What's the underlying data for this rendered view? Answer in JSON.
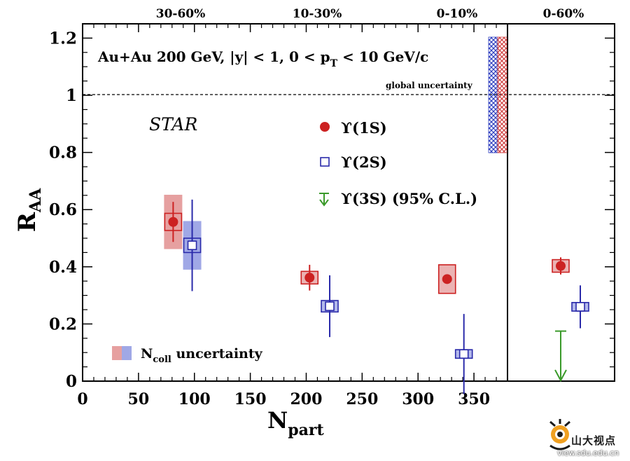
{
  "chart_data": {
    "type": "scatter",
    "title": "Au+Au 200 GeV, |y| < 1, 0 < p_T < 10 GeV/c",
    "experiment": "STAR",
    "xlabel": "N_part",
    "ylabel": "R_AA",
    "xlim": [
      0,
      380
    ],
    "ylim": [
      0,
      1.25
    ],
    "xticks": [
      "0",
      "50",
      "100",
      "150",
      "200",
      "250",
      "300",
      "350"
    ],
    "yticks": [
      "0",
      "0.2",
      "0.4",
      "0.6",
      "0.8",
      "1",
      "1.2"
    ],
    "top_labels": [
      "30-60%",
      "10-30%",
      "0-10%"
    ],
    "side_panel_label": "0-60%",
    "global_uncertainty_label": "global uncertainty",
    "ncoll_uncertainty_label": "N_coll uncertainty",
    "reference_line": 1.0,
    "series": [
      {
        "name": "ϒ(1S)",
        "color": "#cc2222",
        "marker": "filled-circle",
        "points": [
          {
            "x": 81,
            "y": 0.557,
            "stat": 0.07,
            "sys": 0.03,
            "ncoll": 0.095
          },
          {
            "x": 203,
            "y": 0.362,
            "stat": 0.045,
            "sys": 0.022,
            "ncoll": 0.0
          },
          {
            "x": 326,
            "y": 0.357,
            "stat": 0.0,
            "sys": 0.05,
            "ncoll": 0.0
          }
        ]
      },
      {
        "name": "ϒ(2S)",
        "color": "#2a2aaa",
        "marker": "open-square",
        "points": [
          {
            "x": 98,
            "y": 0.475,
            "stat": 0.16,
            "sys": 0.025,
            "ncoll": 0.085
          },
          {
            "x": 221,
            "y": 0.262,
            "stat": 0.108,
            "sys": 0.02,
            "ncoll": 0.0
          },
          {
            "x": 341,
            "y": 0.095,
            "stat": 0.14,
            "sys": 0.015,
            "ncoll": 0.0
          }
        ]
      },
      {
        "name": "ϒ(3S) (95% C.L.)",
        "color": "#3a9a2a",
        "marker": "upper-limit-arrow",
        "points": []
      }
    ],
    "side_panel": {
      "ups1s": {
        "y": 0.403,
        "stat": 0.03,
        "sys": 0.022
      },
      "ups2s": {
        "y": 0.26,
        "stat": 0.075,
        "sys": 0.015
      },
      "ups3s_limit": 0.175
    }
  },
  "watermark": {
    "text": "山大视点",
    "url": "view.sdu.edu.cn"
  }
}
